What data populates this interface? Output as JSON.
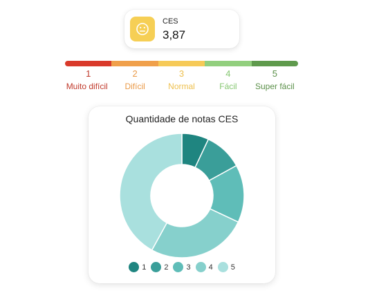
{
  "ces": {
    "label": "CES",
    "value": "3,87",
    "icon": "neutral-face-icon",
    "icon_color": "#f6cf55"
  },
  "scale": [
    {
      "number": "1",
      "label": "Muito difícil",
      "color": "#d93a2b",
      "text_color": "#c0392b"
    },
    {
      "number": "2",
      "label": "Difícil",
      "color": "#f0a04b",
      "text_color": "#ea9a48"
    },
    {
      "number": "3",
      "label": "Normal",
      "color": "#f6ca58",
      "text_color": "#eec04e"
    },
    {
      "number": "4",
      "label": "Fácil",
      "color": "#92cf7e",
      "text_color": "#86c772"
    },
    {
      "number": "5",
      "label": "Super fácil",
      "color": "#5f9a4d",
      "text_color": "#5a8f48"
    }
  ],
  "chart_data": {
    "type": "pie",
    "title": "Quantidade de notas CES",
    "categories": [
      "1",
      "2",
      "3",
      "4",
      "5"
    ],
    "values": [
      7,
      10,
      15,
      26,
      42
    ],
    "colors": [
      "#1f8580",
      "#3a9e99",
      "#5fbdb8",
      "#86d0cc",
      "#a9e0de"
    ],
    "donut": true,
    "legend": "bottom"
  }
}
